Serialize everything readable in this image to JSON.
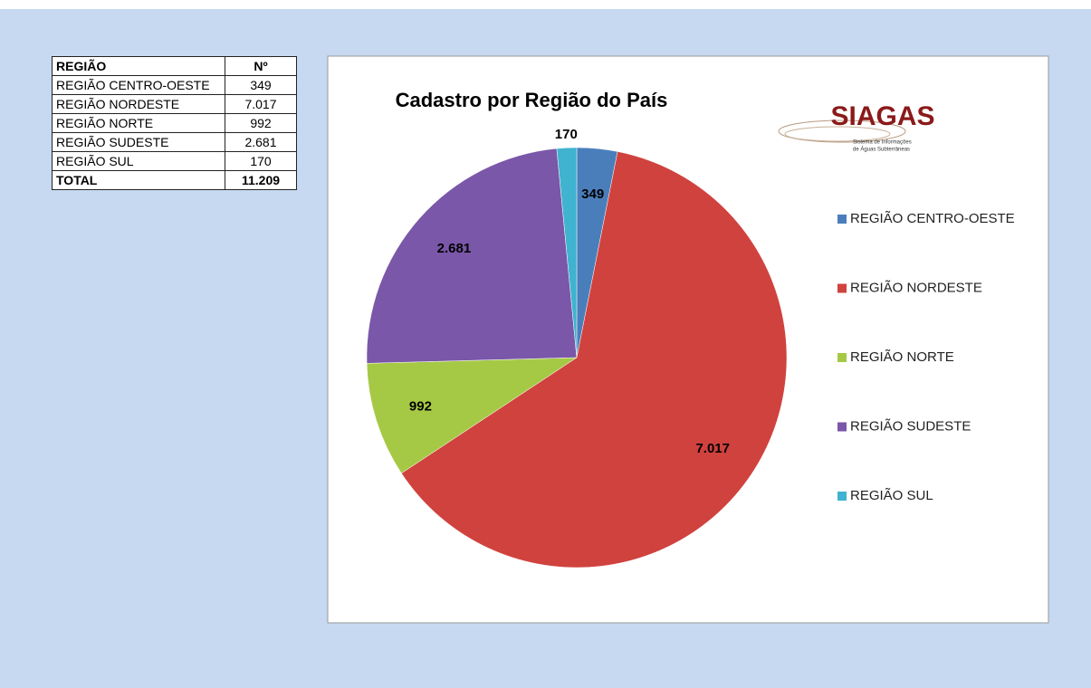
{
  "table": {
    "header": [
      "REGIÃO",
      "Nº"
    ],
    "total_label": "TOTAL",
    "total": "11.209"
  },
  "logo": {
    "name": "SIAGAS",
    "subtitle_line1": "Sistema de Informações",
    "subtitle_line2": "de Águas Subterrâneas"
  },
  "chart_data": {
    "type": "pie",
    "title": "Cadastro por Região do País",
    "categories": [
      "REGIÃO CENTRO-OESTE",
      "REGIÃO NORDESTE",
      "REGIÃO NORTE",
      "REGIÃO SUDESTE",
      "REGIÃO SUL"
    ],
    "values": [
      349,
      7017,
      992,
      2681,
      170
    ],
    "value_labels": [
      "349",
      "7.017",
      "992",
      "2.681",
      "170"
    ],
    "colors": [
      "#4a7ebb",
      "#d0423e",
      "#a5c945",
      "#7a57a8",
      "#3fb3cf"
    ],
    "legend": "right"
  }
}
